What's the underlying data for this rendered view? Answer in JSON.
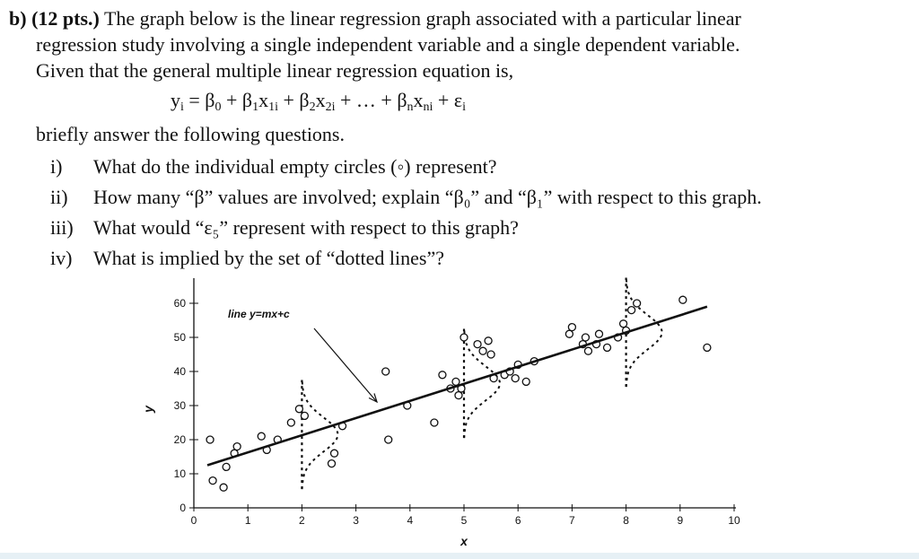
{
  "question": {
    "label": "b)",
    "points": "(12 pts.)",
    "intro_1": "The graph below is the linear regression graph associated with a particular linear",
    "intro_2": "regression study involving a single independent variable and a single dependent variable.",
    "intro_3": "Given that the general multiple linear regression equation is,",
    "equation": {
      "y": "y",
      "y_sub": "i",
      "eq": " = β",
      "b0_sub": "0",
      "p1": " + β",
      "b1_sub": "1",
      "x1": "x",
      "x1_sub": "1i",
      "p2": " + β",
      "b2_sub": "2",
      "x2": "x",
      "x2_sub": "2i",
      "p3": " + … + β",
      "bn_sub": "n",
      "xn": "x",
      "xn_sub": "ni",
      "p4": " + ε",
      "e_sub": "i"
    },
    "lead": "briefly answer the following questions."
  },
  "items": [
    {
      "num": "i)",
      "text": "What do the individual empty circles (◦) represent?"
    },
    {
      "num": "ii)",
      "text": "How many “β” values are involved; explain “β₀” and “β₁” with respect to this graph."
    },
    {
      "num": "iii)",
      "text": "What would “ε₅” represent with respect to this graph?"
    },
    {
      "num": "iv)",
      "text": "What is implied by the set of “dotted lines”?"
    }
  ],
  "chart_data": {
    "type": "scatter",
    "xlabel": "x",
    "ylabel": "y",
    "xlim": [
      0,
      10
    ],
    "ylim": [
      0,
      60
    ],
    "xticks": [
      "0",
      "1",
      "2",
      "3",
      "4",
      "5",
      "6",
      "7",
      "8",
      "9",
      "10"
    ],
    "yticks": [
      "0",
      "10",
      "20",
      "30",
      "40",
      "50",
      "60"
    ],
    "annotation": "line y=mx+c",
    "regression_line": {
      "x": [
        0.25,
        9.5
      ],
      "y": [
        12.5,
        59
      ]
    },
    "points": [
      [
        0.3,
        20
      ],
      [
        0.35,
        8
      ],
      [
        0.55,
        6
      ],
      [
        0.6,
        12
      ],
      [
        0.75,
        16
      ],
      [
        0.8,
        18
      ],
      [
        1.25,
        21
      ],
      [
        1.35,
        17
      ],
      [
        1.55,
        20
      ],
      [
        1.8,
        25
      ],
      [
        1.95,
        29
      ],
      [
        2.05,
        27
      ],
      [
        2.55,
        13
      ],
      [
        2.6,
        16
      ],
      [
        2.75,
        24
      ],
      [
        3.55,
        40
      ],
      [
        3.6,
        20
      ],
      [
        3.95,
        30
      ],
      [
        4.45,
        25
      ],
      [
        4.6,
        39
      ],
      [
        4.75,
        35
      ],
      [
        4.85,
        37
      ],
      [
        4.9,
        33
      ],
      [
        4.95,
        35
      ],
      [
        5.0,
        50
      ],
      [
        5.25,
        48
      ],
      [
        5.35,
        46
      ],
      [
        5.45,
        49
      ],
      [
        5.5,
        45
      ],
      [
        5.55,
        38
      ],
      [
        5.75,
        39
      ],
      [
        5.85,
        40
      ],
      [
        5.95,
        38
      ],
      [
        6.0,
        42
      ],
      [
        6.15,
        37
      ],
      [
        6.3,
        43
      ],
      [
        6.95,
        51
      ],
      [
        7.0,
        53
      ],
      [
        7.2,
        48
      ],
      [
        7.25,
        50
      ],
      [
        7.3,
        46
      ],
      [
        7.45,
        48
      ],
      [
        7.5,
        51
      ],
      [
        7.65,
        47
      ],
      [
        7.85,
        50
      ],
      [
        7.95,
        54
      ],
      [
        8.0,
        52
      ],
      [
        8.1,
        58
      ],
      [
        8.2,
        60
      ],
      [
        9.05,
        61
      ],
      [
        9.5,
        47
      ]
    ],
    "distribution_curves": [
      {
        "x_center": 2.0,
        "mean": 21.5,
        "sd": 5
      },
      {
        "x_center": 5.0,
        "mean": 36.5,
        "sd": 5
      },
      {
        "x_center": 8.0,
        "mean": 51.5,
        "sd": 5
      }
    ]
  }
}
